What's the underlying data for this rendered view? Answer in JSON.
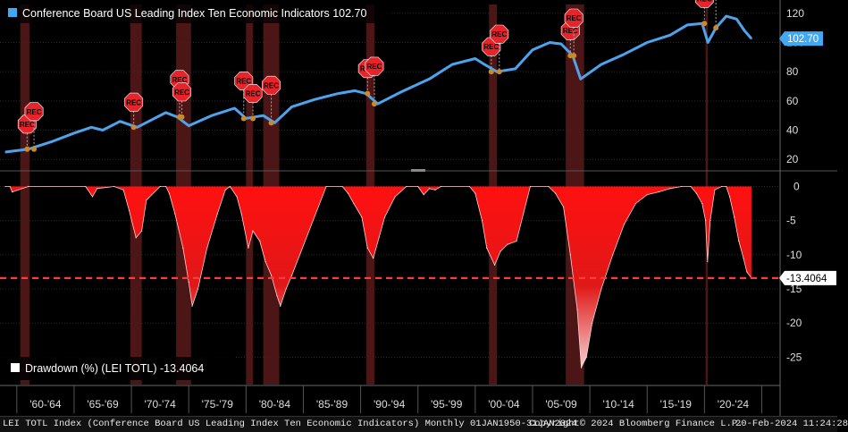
{
  "chart_data": [
    {
      "type": "line",
      "legend": {
        "label": "Conference Board US Leading Index Ten Economic Indicators",
        "last_value": "102.70",
        "color": "#3fa9f5",
        "placement": "top-left"
      },
      "last_value_tag": "102.70",
      "ylim": [
        14,
        126
      ],
      "yticks": [
        20,
        40,
        60,
        80,
        100,
        120
      ],
      "series": [
        {
          "color": "#4da3ec",
          "x": [
            1959.0,
            1961.0,
            1963.0,
            1965.0,
            1966.5,
            1967.5,
            1969.0,
            1970.5,
            1972.0,
            1973.0,
            1974.0,
            1975.0,
            1977.0,
            1979.0,
            1980.0,
            1981.5,
            1982.5,
            1984.0,
            1986.0,
            1988.0,
            1989.5,
            1990.5,
            1991.5,
            1993.5,
            1996.0,
            1998.0,
            2000.0,
            2000.8,
            2001.9,
            2003.5,
            2005.0,
            2006.5,
            2007.5,
            2008.5,
            2009.2,
            2011.0,
            2013.0,
            2015.0,
            2017.0,
            2018.5,
            2019.8,
            2020.3,
            2021.0,
            2021.9,
            2022.8,
            2023.5,
            2024.1
          ],
          "values": [
            25,
            27,
            32,
            38,
            42,
            40,
            46,
            42,
            48,
            52,
            49,
            43,
            50,
            55,
            48,
            50,
            45,
            56,
            61,
            65,
            67,
            65,
            58,
            66,
            75,
            85,
            89,
            85,
            80,
            82,
            95,
            100,
            99,
            91,
            75,
            85,
            92,
            100,
            105,
            112,
            113,
            100,
            110,
            118,
            116,
            108,
            102.7
          ]
        }
      ],
      "recessions": [
        [
          1960.3,
          1961.1
        ],
        [
          1969.9,
          1970.9
        ],
        [
          1973.9,
          1975.2
        ],
        [
          1980.0,
          1980.6
        ],
        [
          1981.5,
          1982.9
        ],
        [
          1990.5,
          1991.2
        ],
        [
          2001.2,
          2001.9
        ],
        [
          2007.9,
          2009.5
        ],
        [
          2020.1,
          2020.3
        ]
      ],
      "rec_markers": [
        {
          "label": "REC",
          "x": 1960.9
        },
        {
          "label": "REC",
          "x": 1961.5
        },
        {
          "label": "REC",
          "x": 1970.2
        },
        {
          "label": "REC",
          "x": 1974.2
        },
        {
          "label": "REC",
          "x": 1974.4
        },
        {
          "label": "REC",
          "x": 1979.8
        },
        {
          "label": "REC",
          "x": 1980.6
        },
        {
          "label": "REC",
          "x": 1982.2
        },
        {
          "label": "REC",
          "x": 1990.6
        },
        {
          "label": "REC",
          "x": 1991.2
        },
        {
          "label": "REC",
          "x": 2001.4
        },
        {
          "label": "REC",
          "x": 2002.1
        },
        {
          "label": "REC",
          "x": 2008.3
        },
        {
          "label": "REC",
          "x": 2008.6
        },
        {
          "label": "REC",
          "x": 2020.0
        },
        {
          "label": "REC",
          "x": 2021.0
        }
      ]
    },
    {
      "type": "area",
      "legend": {
        "label": "Drawdown (%) (LEI TOTL)",
        "last_value": "-13.4064",
        "color": "#ffffff",
        "placement": "bottom-left"
      },
      "last_value_tag": "-13.4064",
      "reference_line": -13.4064,
      "ylim": [
        -29,
        1.5
      ],
      "yticks": [
        0,
        -5,
        -10,
        -15,
        -20,
        -25
      ],
      "series": [
        {
          "color": "#ff1a1a",
          "x": [
            1959.0,
            1959.4,
            1959.6,
            1961.0,
            1966.0,
            1966.6,
            1967.0,
            1968.5,
            1969.3,
            1969.8,
            1970.4,
            1970.9,
            1971.3,
            1972.5,
            1973.0,
            1973.3,
            1973.8,
            1974.5,
            1975.0,
            1975.3,
            1975.8,
            1976.6,
            1977.5,
            1978.2,
            1978.6,
            1979.2,
            1979.6,
            1980.2,
            1980.6,
            1981.2,
            1981.7,
            1982.2,
            1982.7,
            1983.0,
            1983.5,
            1984.0,
            1987.0,
            1988.4,
            1988.9,
            1989.4,
            1990.1,
            1990.6,
            1991.1,
            1991.6,
            1992.1,
            1993.0,
            1994.0,
            1995.0,
            1995.5,
            1996.0,
            1996.5,
            1997.0,
            1999.5,
            2000.0,
            2000.6,
            2001.0,
            2001.7,
            2002.2,
            2002.8,
            2003.6,
            2004.2,
            2004.8,
            2006.4,
            2007.0,
            2007.7,
            2008.3,
            2008.9,
            2009.25,
            2009.7,
            2010.2,
            2011.0,
            2012.0,
            2013.0,
            2014.0,
            2015.0,
            2016.0,
            2017.0,
            2018.0,
            2018.8,
            2019.3,
            2019.8,
            2020.1,
            2020.27,
            2020.5,
            2020.9,
            2021.5,
            2021.9,
            2022.2,
            2022.6,
            2023.0,
            2023.4,
            2023.7,
            2024.1
          ],
          "values": [
            0,
            0,
            -0.8,
            0,
            0,
            -1.5,
            -0.3,
            0,
            -0.5,
            -3.5,
            -7.5,
            -6.5,
            -2,
            0,
            0,
            -1,
            -4,
            -9,
            -14,
            -17.5,
            -15,
            -9,
            -4,
            -0.5,
            0,
            -1.5,
            -4,
            -9,
            -6.5,
            -8,
            -11,
            -13,
            -16,
            -17.5,
            -15,
            -13,
            0,
            0,
            -1,
            -2.5,
            -4.5,
            -9,
            -10.5,
            -7.5,
            -4.5,
            -1.5,
            0,
            0,
            -1.2,
            -0.3,
            -0.5,
            0,
            0,
            -1,
            -5,
            -9,
            -11.5,
            -9.5,
            -8.5,
            -8,
            -4,
            0,
            0,
            -1,
            -3,
            -10,
            -18,
            -26.5,
            -25,
            -20,
            -15,
            -10,
            -5.5,
            -2.5,
            -1.2,
            -0.8,
            -0.3,
            0,
            0,
            -1,
            -2.5,
            -5,
            -11,
            -5,
            -0.5,
            0,
            0,
            -1.5,
            -4.5,
            -8,
            -10.5,
            -12.5,
            -13.4064
          ]
        }
      ],
      "recessions": [
        [
          1960.3,
          1961.1
        ],
        [
          1969.9,
          1970.9
        ],
        [
          1973.9,
          1975.2
        ],
        [
          1980.0,
          1980.6
        ],
        [
          1981.5,
          1982.9
        ],
        [
          1990.5,
          1991.2
        ],
        [
          2001.2,
          2001.9
        ],
        [
          2007.9,
          2009.5
        ],
        [
          2020.1,
          2020.3
        ]
      ]
    }
  ],
  "x_axis": {
    "range": [
      1959.0,
      2026.6
    ],
    "ticks": [
      {
        "label": "'60-'64",
        "start": 1960,
        "end": 1965
      },
      {
        "label": "'65-'69",
        "start": 1965,
        "end": 1970
      },
      {
        "label": "'70-'74",
        "start": 1970,
        "end": 1975
      },
      {
        "label": "'75-'79",
        "start": 1975,
        "end": 1980
      },
      {
        "label": "'80-'84",
        "start": 1980,
        "end": 1985
      },
      {
        "label": "'85-'89",
        "start": 1985,
        "end": 1990
      },
      {
        "label": "'90-'94",
        "start": 1990,
        "end": 1995
      },
      {
        "label": "'95-'99",
        "start": 1995,
        "end": 2000
      },
      {
        "label": "'00-'04",
        "start": 2000,
        "end": 2005
      },
      {
        "label": "'05-'09",
        "start": 2005,
        "end": 2010
      },
      {
        "label": "'10-'14",
        "start": 2010,
        "end": 2015
      },
      {
        "label": "'15-'19",
        "start": 2015,
        "end": 2020
      },
      {
        "label": "'20-'24",
        "start": 2020,
        "end": 2025
      }
    ]
  },
  "footer": {
    "description": "LEI TOTL Index (Conference Board US Leading Index Ten Economic Indicators)  Monthly 01JAN1950-31JAN2024",
    "copyright": "Copyright© 2024 Bloomberg Finance L.P.",
    "timestamp": "20-Feb-2024 11:24:28"
  }
}
